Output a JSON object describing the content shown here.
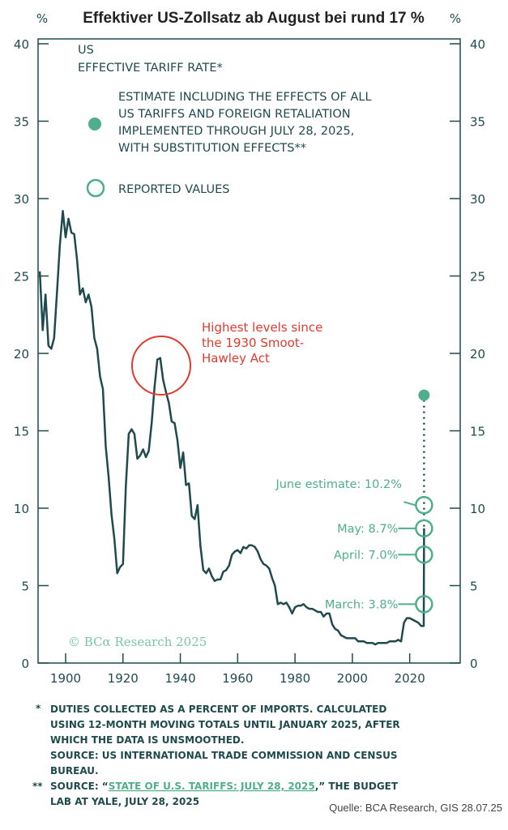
{
  "chart_data": {
    "type": "line",
    "title": "Effektiver US-Zollsatz ab August bei rund 17 %",
    "ylabel_left": "%",
    "ylabel_right": "%",
    "ylim": [
      0,
      40
    ],
    "yticks": [
      0,
      5,
      10,
      15,
      20,
      25,
      30,
      35,
      40
    ],
    "xlim": [
      1891,
      2033
    ],
    "xticks": [
      1900,
      1920,
      1940,
      1960,
      1980,
      2000,
      2020
    ],
    "legend": {
      "heading_1": "US",
      "heading_2": "EFFECTIVE TARIFF RATE*",
      "estimate_lines": [
        "ESTIMATE INCLUDING THE EFFECTS OF ALL",
        "US TARIFFS AND FOREIGN RETALIATION",
        "IMPLEMENTED THROUGH JULY 28, 2025,",
        "WITH SUBSTITUTION EFFECTS**"
      ],
      "reported_label": "REPORTED VALUES"
    },
    "series": [
      {
        "name": "US effective tariff rate",
        "x": [
          1891,
          1892,
          1893,
          1894,
          1895,
          1896,
          1897,
          1898,
          1899,
          1900,
          1901,
          1902,
          1903,
          1904,
          1905,
          1906,
          1907,
          1908,
          1909,
          1910,
          1911,
          1912,
          1913,
          1914,
          1915,
          1916,
          1917,
          1918,
          1919,
          1920,
          1921,
          1922,
          1923,
          1924,
          1925,
          1926,
          1927,
          1928,
          1929,
          1930,
          1931,
          1932,
          1933,
          1934,
          1935,
          1936,
          1937,
          1938,
          1939,
          1940,
          1941,
          1942,
          1943,
          1944,
          1945,
          1946,
          1947,
          1948,
          1949,
          1950,
          1951,
          1952,
          1953,
          1954,
          1955,
          1956,
          1957,
          1958,
          1959,
          1960,
          1961,
          1962,
          1963,
          1964,
          1965,
          1966,
          1967,
          1968,
          1969,
          1970,
          1971,
          1972,
          1973,
          1974,
          1975,
          1976,
          1977,
          1978,
          1979,
          1980,
          1981,
          1982,
          1983,
          1984,
          1985,
          1986,
          1987,
          1988,
          1989,
          1990,
          1991,
          1992,
          1993,
          1994,
          1995,
          1996,
          1997,
          1998,
          1999,
          2000,
          2001,
          2002,
          2003,
          2004,
          2005,
          2006,
          2007,
          2008,
          2009,
          2010,
          2011,
          2012,
          2013,
          2014,
          2015,
          2016,
          2017,
          2018,
          2019,
          2020,
          2021,
          2022,
          2023,
          2024,
          2024.9,
          2025
        ],
        "y": [
          25.3,
          21.5,
          23.8,
          20.5,
          20.3,
          21.0,
          24.0,
          27.0,
          29.2,
          27.5,
          28.7,
          27.8,
          27.7,
          26.0,
          23.8,
          24.2,
          23.3,
          23.8,
          23.0,
          21.0,
          20.3,
          18.5,
          17.7,
          14.0,
          12.0,
          9.6,
          8.0,
          5.8,
          6.2,
          6.4,
          11.4,
          14.8,
          15.1,
          14.8,
          13.2,
          13.4,
          13.8,
          13.3,
          13.7,
          15.5,
          17.8,
          19.6,
          19.7,
          18.3,
          17.5,
          16.8,
          15.6,
          15.5,
          14.4,
          12.6,
          13.6,
          11.5,
          11.6,
          9.5,
          9.3,
          10.2,
          7.6,
          6.0,
          5.8,
          6.1,
          5.6,
          5.3,
          5.4,
          5.4,
          5.9,
          6.0,
          6.3,
          7.0,
          7.2,
          7.3,
          7.1,
          7.5,
          7.4,
          7.6,
          7.6,
          7.5,
          7.2,
          6.7,
          6.4,
          6.3,
          6.1,
          5.5,
          5.0,
          3.8,
          3.9,
          3.8,
          3.9,
          3.6,
          3.2,
          3.6,
          3.7,
          3.7,
          3.8,
          3.6,
          3.5,
          3.5,
          3.4,
          3.3,
          3.3,
          3.0,
          3.2,
          3.2,
          2.5,
          2.2,
          2.1,
          1.8,
          1.7,
          1.6,
          1.6,
          1.6,
          1.6,
          1.4,
          1.4,
          1.4,
          1.3,
          1.3,
          1.3,
          1.2,
          1.3,
          1.3,
          1.3,
          1.3,
          1.4,
          1.4,
          1.4,
          1.5,
          1.4,
          2.6,
          2.9,
          2.9,
          2.8,
          2.7,
          2.6,
          2.4,
          2.4,
          8.7
        ]
      }
    ],
    "reported_values": [
      {
        "label": "March: 3.8%",
        "value": 3.8
      },
      {
        "label": "April: 7.0%",
        "value": 7.0
      },
      {
        "label": "May: 8.7%",
        "value": 8.7
      },
      {
        "label": "June estimate: 10.2%",
        "value": 10.2
      }
    ],
    "estimate": {
      "x": 2025,
      "value": 17.3
    },
    "annotation": [
      "Highest levels since",
      "the 1930 Smoot-",
      "Hawley Act"
    ],
    "watermark": "© BCα Research 2025"
  },
  "footnotes": {
    "star1_mark": "*",
    "star1_lines": [
      "DUTIES COLLECTED AS A PERCENT OF IMPORTS. CALCULATED",
      "USING 12-MONTH  MOVING TOTALS UNTIL JANUARY 2025, AFTER",
      "WHICH THE DATA IS UNSMOOTHED.",
      "SOURCE: US INTERNATIONAL TRADE COMMISSION AND CENSUS",
      "BUREAU."
    ],
    "star2_mark": "**",
    "star2_prefix": "SOURCE: “",
    "star2_link": "STATE OF U.S. TARIFFS: JULY 28, 2025",
    "star2_suffix": ",” THE BUDGET",
    "star2_line2": "LAB AT YALE, JULY 28, 2025",
    "source": "Quelle: BCA Research, GIS 28.07.25"
  },
  "colors": {
    "line": "#1f4a4e",
    "accent": "#4fae8c",
    "red": "#e03a2f"
  }
}
